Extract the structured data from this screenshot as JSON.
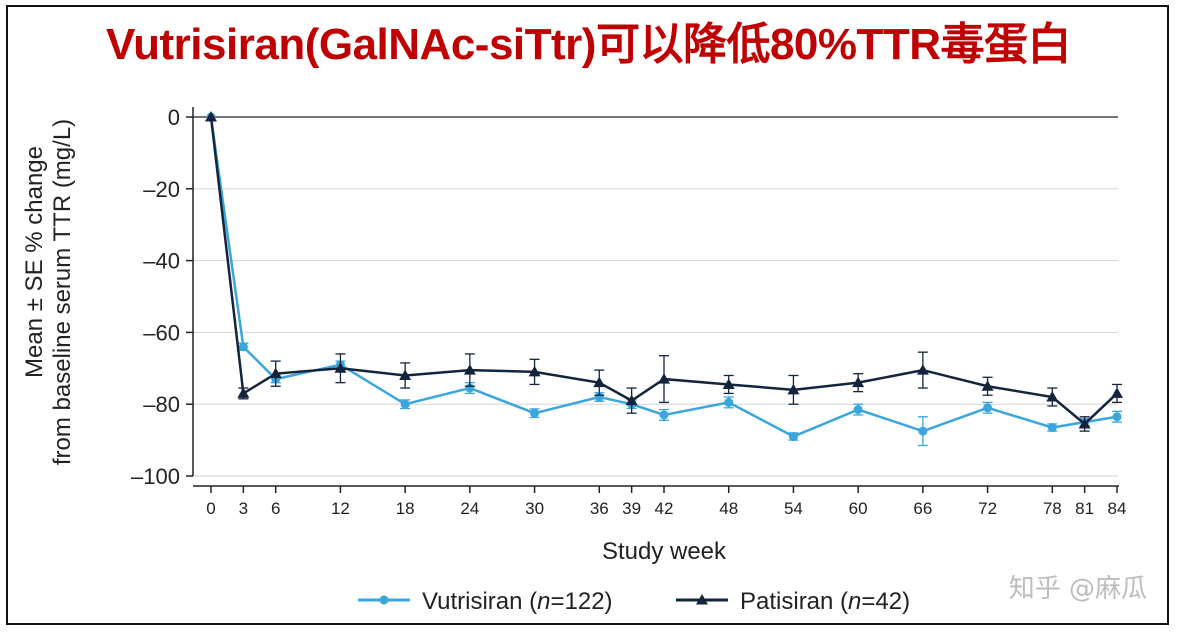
{
  "title": "Vutrisiran(GalNAc-siTtr)可以降低80%TTR毒蛋白",
  "watermark": "知乎 @麻瓜",
  "chart_data": {
    "type": "line",
    "title": "Vutrisiran(GalNAc-siTtr)可以降低80%TTR毒蛋白",
    "xlabel": "Study week",
    "ylabel": [
      "Mean ± SE % change",
      "from baseline serum TTR (mg/L)"
    ],
    "ylim": [
      -100,
      0
    ],
    "yticks": [
      0,
      -20,
      -40,
      -60,
      -80,
      -100
    ],
    "ytick_labels": [
      "0",
      "–20",
      "–40",
      "–60",
      "–80",
      "–100"
    ],
    "xticks": [
      0,
      3,
      6,
      12,
      18,
      24,
      30,
      36,
      39,
      42,
      48,
      54,
      60,
      66,
      72,
      78,
      81,
      84
    ],
    "grid": "horizontal",
    "legend_position": "bottom",
    "series": [
      {
        "name": "Vutrisiran (n=122)",
        "name_prefix": "Vutrisiran (",
        "name_italic": "n",
        "name_suffix": "=122)",
        "color": "#3aa6dc",
        "marker": "circle",
        "x": [
          0,
          3,
          6,
          12,
          18,
          24,
          30,
          36,
          39,
          42,
          48,
          54,
          60,
          66,
          72,
          78,
          81,
          84
        ],
        "y": [
          0,
          -64,
          -73,
          -69,
          -80,
          -75.5,
          -82.5,
          -78,
          -80,
          -83,
          -79.5,
          -89,
          -81.5,
          -87.5,
          -81,
          -86.5,
          -85,
          -83.5
        ],
        "err": [
          0,
          1,
          1,
          1,
          1.2,
          1.5,
          1.2,
          1.2,
          1.2,
          1.5,
          1.5,
          1,
          1.5,
          4,
          1.5,
          1,
          1,
          1.5
        ]
      },
      {
        "name": "Patisiran (n=42)",
        "name_prefix": "Patisiran (",
        "name_italic": "n",
        "name_suffix": "=42)",
        "color": "#14243d",
        "marker": "triangle",
        "x": [
          0,
          3,
          6,
          12,
          18,
          24,
          30,
          36,
          39,
          42,
          48,
          54,
          60,
          66,
          72,
          78,
          81,
          84
        ],
        "y": [
          0,
          -77,
          -71.5,
          -70,
          -72,
          -70.5,
          -71,
          -74,
          -79,
          -73,
          -74.5,
          -76,
          -74,
          -70.5,
          -75,
          -78,
          -85.5,
          -77
        ],
        "err": [
          0,
          1.5,
          3.5,
          4,
          3.5,
          4.5,
          3.5,
          3.5,
          3.5,
          6.5,
          2.5,
          4,
          2.5,
          5,
          2.5,
          2.5,
          2,
          2.5
        ]
      }
    ]
  }
}
